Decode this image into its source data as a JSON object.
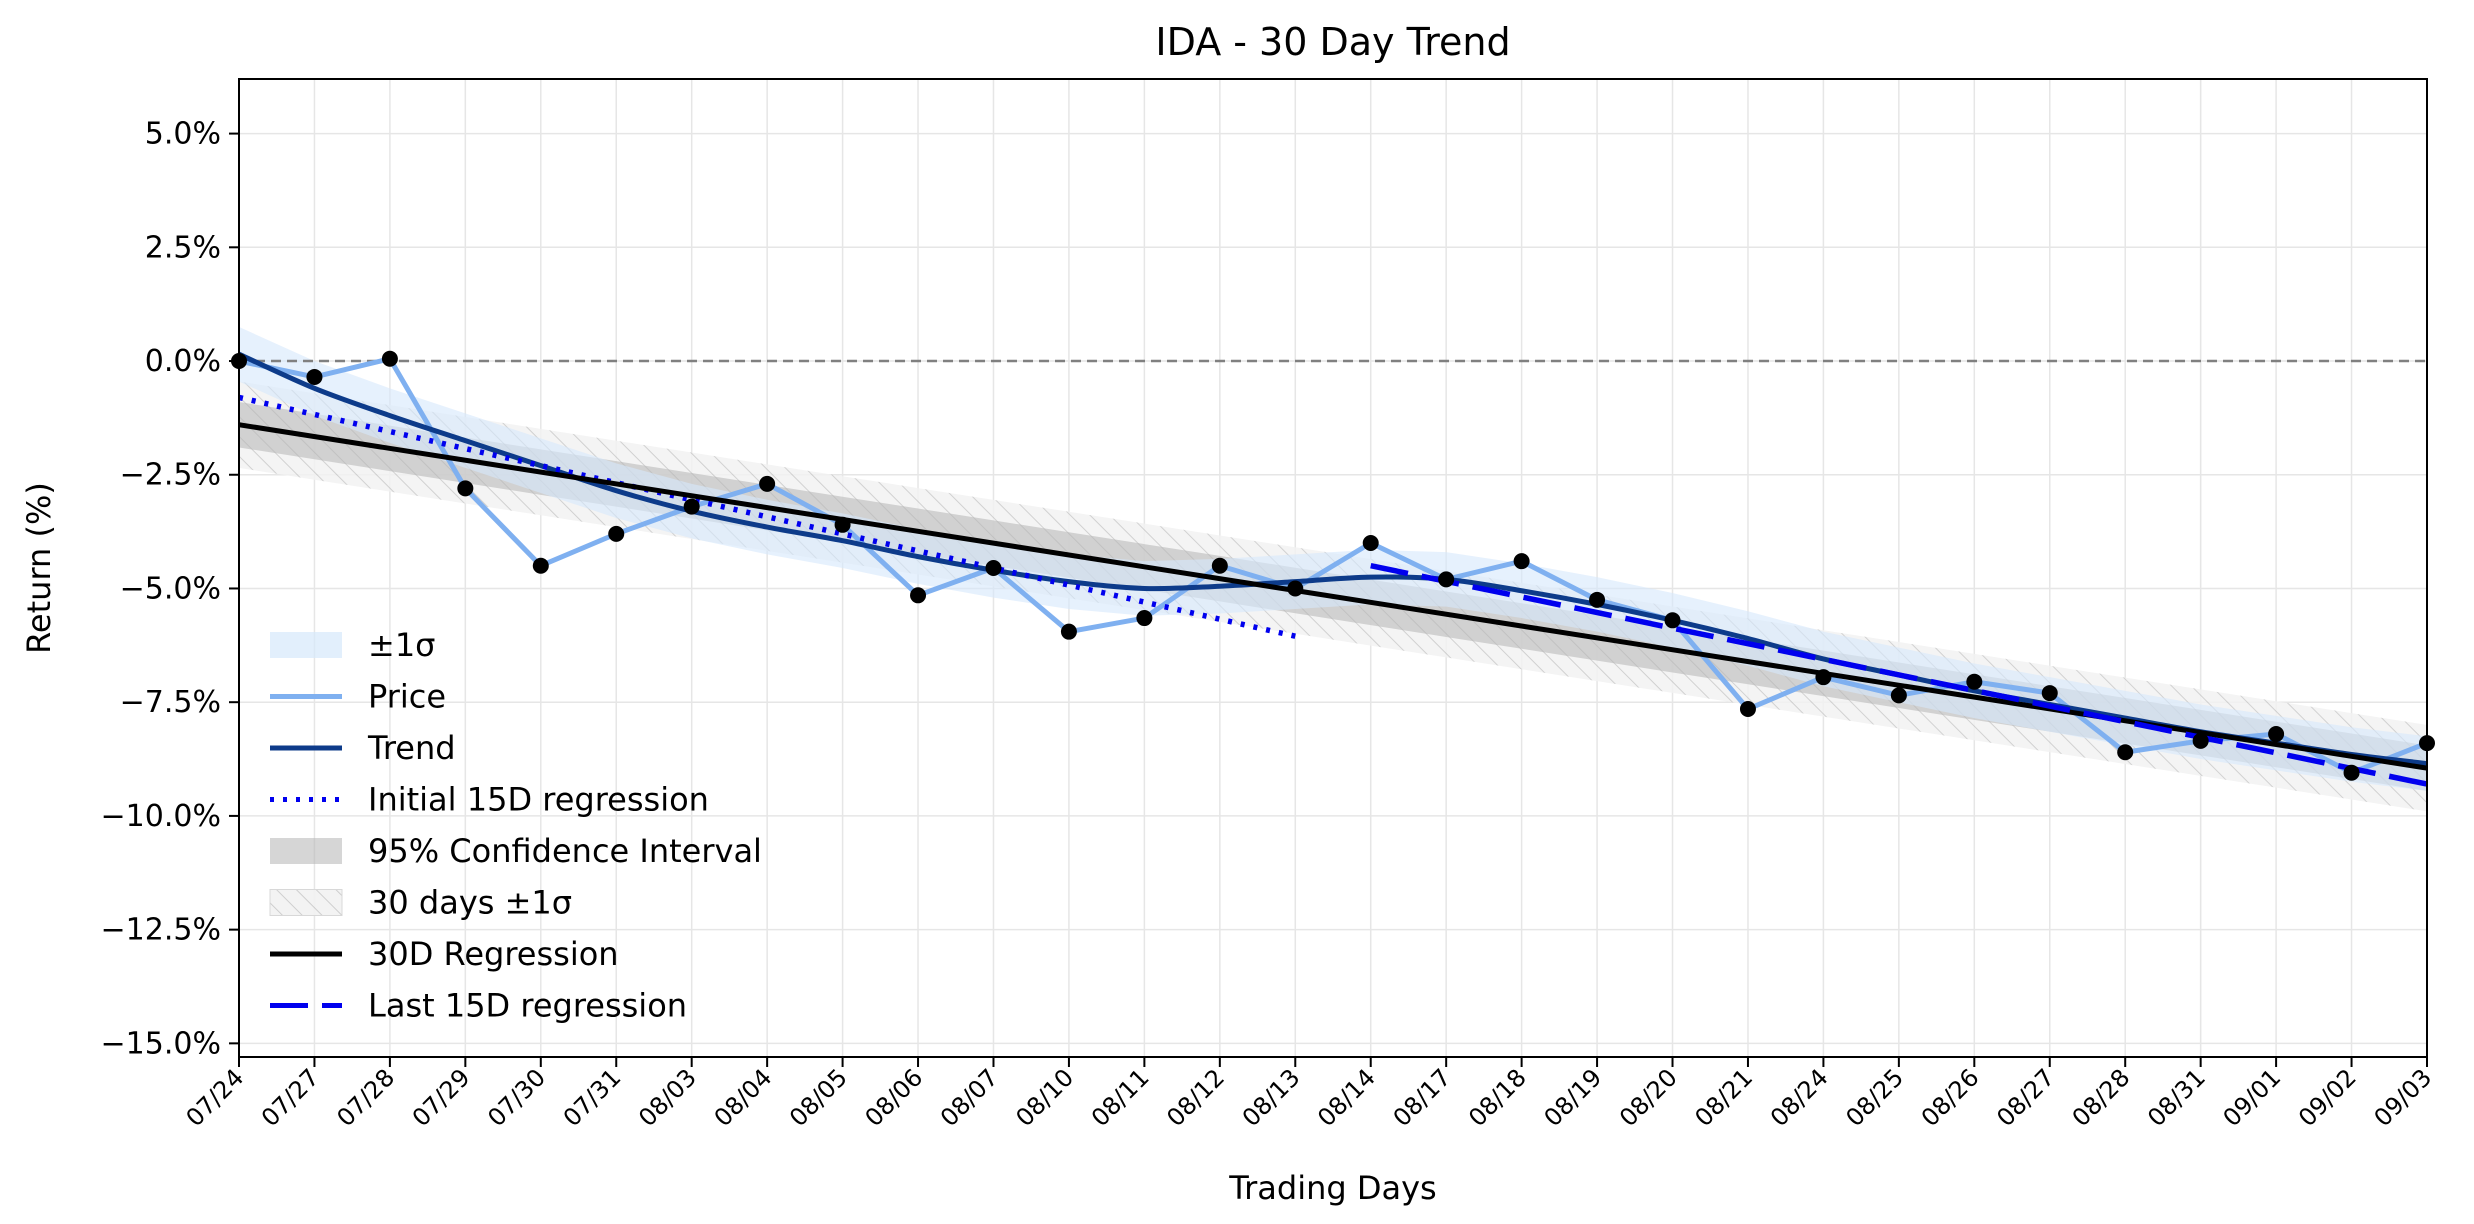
{
  "chart_data": {
    "type": "line",
    "title": "IDA - 30 Day Trend",
    "xlabel": "Trading Days",
    "ylabel": "Return (%)",
    "ylim": [
      -15.3,
      6.2
    ],
    "grid": true,
    "legend_position": "lower-left",
    "x": [
      "07/24",
      "07/27",
      "07/28",
      "07/29",
      "07/30",
      "07/31",
      "08/03",
      "08/04",
      "08/05",
      "08/06",
      "08/07",
      "08/10",
      "08/11",
      "08/12",
      "08/13",
      "08/14",
      "08/17",
      "08/18",
      "08/19",
      "08/20",
      "08/21",
      "08/24",
      "08/25",
      "08/26",
      "08/27",
      "08/28",
      "08/31",
      "09/01",
      "09/02",
      "09/03"
    ],
    "y_ticks": [
      5.0,
      2.5,
      0.0,
      -2.5,
      -5.0,
      -7.5,
      -10.0,
      -12.5,
      -15.0
    ],
    "y_tick_labels": [
      "5.0%",
      "2.5%",
      "0.0%",
      "−2.5%",
      "−5.0%",
      "−7.5%",
      "−10.0%",
      "−12.5%",
      "−15.0%"
    ],
    "zero_line": 0.0,
    "series": [
      {
        "name": "Price",
        "color": "#7fb0f0",
        "values": [
          0.0,
          -0.35,
          0.05,
          -2.8,
          -4.5,
          -3.8,
          -3.2,
          -2.7,
          -3.6,
          -5.15,
          -4.55,
          -5.95,
          -5.65,
          -4.5,
          -5.0,
          -4.0,
          -4.8,
          -4.4,
          -5.25,
          -5.7,
          -7.65,
          -6.95,
          -7.35,
          -7.05,
          -7.3,
          -8.6,
          -8.35,
          -8.2,
          -9.05,
          -8.4
        ]
      },
      {
        "name": "Trend",
        "color": "#0d3b8a",
        "values": [
          0.15,
          -0.6,
          -1.2,
          -1.75,
          -2.3,
          -2.85,
          -3.3,
          -3.65,
          -3.95,
          -4.3,
          -4.6,
          -4.85,
          -5.0,
          -4.95,
          -4.85,
          -4.75,
          -4.8,
          -5.05,
          -5.35,
          -5.7,
          -6.1,
          -6.55,
          -6.9,
          -7.25,
          -7.55,
          -7.85,
          -8.15,
          -8.4,
          -8.65,
          -8.85
        ]
      },
      {
        "name": "Initial 15D regression",
        "color": "#0000ee",
        "style": "dotted",
        "start": [
          0,
          -0.8
        ],
        "end": [
          14,
          -6.05
        ]
      },
      {
        "name": "30D Regression",
        "color": "#000000",
        "start": [
          0,
          -1.4
        ],
        "end": [
          29,
          -8.95
        ]
      },
      {
        "name": "Last 15D regression",
        "color": "#0000ee",
        "style": "dashed",
        "start": [
          15,
          -4.5
        ],
        "end": [
          29,
          -9.3
        ]
      }
    ],
    "bands": [
      {
        "name": "±1σ",
        "color": "#d6e8fb",
        "around": "Trend",
        "halfwidth": 0.6
      },
      {
        "name": "95% Confidence Interval",
        "color": "#b5b5b5",
        "around": "30D Regression",
        "halfwidth": 0.5
      },
      {
        "name": "30 days ±1σ",
        "color": "#cfcfcf",
        "hatched": true,
        "around": "30D Regression",
        "halfwidth": 0.95
      }
    ],
    "legend": [
      "±1σ",
      "Price",
      "Trend",
      "Initial 15D regression",
      "95% Confidence Interval",
      "30 days ±1σ",
      "30D Regression",
      "Last 15D regression"
    ]
  }
}
